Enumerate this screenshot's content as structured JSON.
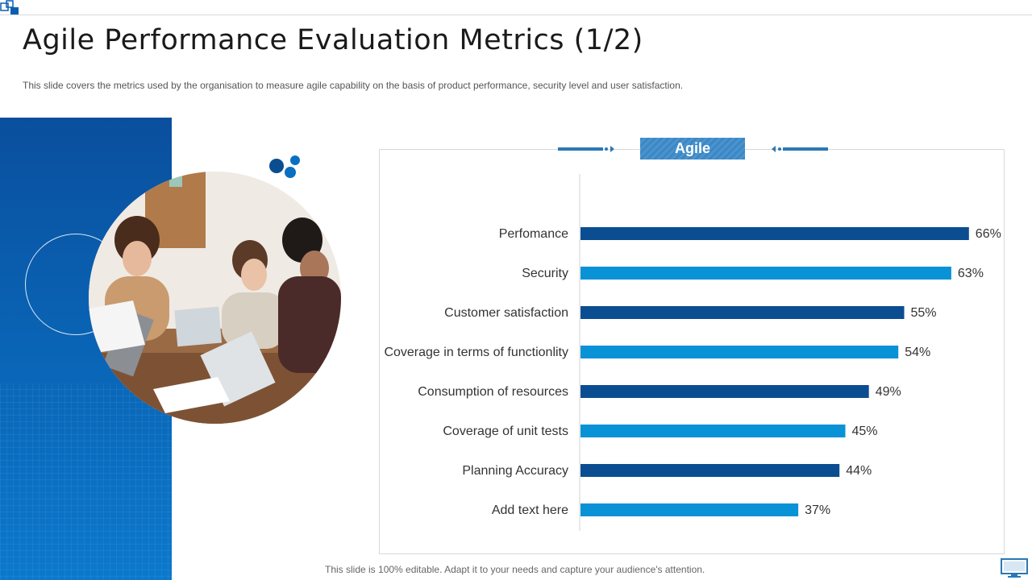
{
  "slide": {
    "title": "Agile Performance Evaluation Metrics (1/2)",
    "subtitle": "This slide covers the metrics used by the organisation to measure agile capability on the basis of product performance,  security level and user satisfaction.",
    "footer": "This slide is 100% editable. Adapt it to your needs and capture your audience's attention."
  },
  "colors": {
    "dark_bar": "#0b4d91",
    "light_bar": "#0a92d6",
    "panel": "#0a5eb0"
  },
  "icons": {
    "corner": "logo-squares-icon",
    "footer": "monitor-icon"
  },
  "chart_data": {
    "type": "bar",
    "orientation": "horizontal",
    "title": "Agile",
    "categories": [
      "Perfomance",
      "Security",
      "Customer satisfaction",
      "Coverage in terms of functionlity",
      "Consumption of resources ",
      "Coverage of unit tests ",
      "Planning Accuracy",
      "Add text here"
    ],
    "values": [
      66,
      63,
      55,
      54,
      49,
      45,
      44,
      37
    ],
    "value_labels": [
      "66%",
      "63%",
      "55%",
      "54%",
      "49%",
      "45%",
      "44%",
      "37%"
    ],
    "unit": "%",
    "xlim": [
      0,
      70
    ],
    "grid": false,
    "legend": "none"
  }
}
